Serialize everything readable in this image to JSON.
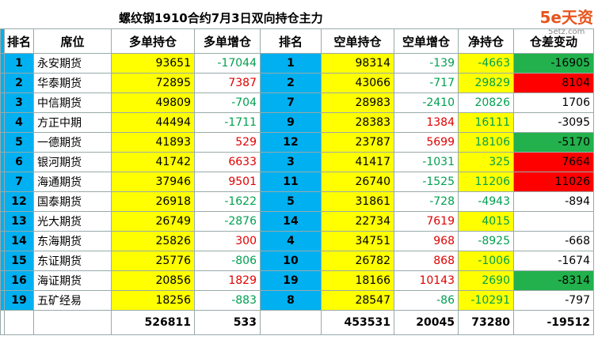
{
  "title": "螺纹钢1910合约7月3日双向持仓主力",
  "logo": {
    "brand": "5e天资",
    "site": "5etz.com"
  },
  "table": {
    "header": [
      "排名",
      "席位",
      "多单持仓",
      "多单增仓",
      "排名",
      "空单持仓",
      "空单增仓",
      "净持仓",
      "仓差变动"
    ],
    "rows": [
      [
        1,
        "永安期货",
        93651,
        -17044,
        1,
        98314,
        -139,
        -4663,
        -16905
      ],
      [
        2,
        "华泰期货",
        72895,
        7387,
        2,
        43066,
        -717,
        29829,
        8104
      ],
      [
        3,
        "中信期货",
        49809,
        -704,
        7,
        28983,
        -2410,
        20826,
        1706
      ],
      [
        4,
        "方正中期",
        44494,
        -1711,
        9,
        28383,
        1384,
        16111,
        -3095
      ],
      [
        5,
        "一德期货",
        41893,
        529,
        12,
        23787,
        5699,
        18106,
        -5170
      ],
      [
        6,
        "银河期货",
        41742,
        6633,
        3,
        41417,
        -1031,
        325,
        7664
      ],
      [
        7,
        "海通期货",
        37946,
        9501,
        11,
        26740,
        -1525,
        11206,
        11026
      ],
      [
        12,
        "国泰期货",
        26918,
        -1622,
        5,
        31861,
        -728,
        -4943,
        -894
      ],
      [
        13,
        "光大期货",
        26749,
        -2876,
        14,
        22734,
        7619,
        4015,
        null
      ],
      [
        14,
        "东海期货",
        25826,
        300,
        4,
        34751,
        968,
        -8925,
        -668
      ],
      [
        15,
        "东证期货",
        25776,
        -806,
        10,
        26782,
        868,
        -1006,
        -1674
      ],
      [
        16,
        "海证期货",
        20856,
        1829,
        19,
        18166,
        10143,
        2690,
        -8314
      ],
      [
        19,
        "五矿经易",
        18256,
        -883,
        8,
        28547,
        -86,
        -10291,
        -797
      ]
    ],
    "total": [
      null,
      null,
      526811,
      533,
      null,
      453531,
      20045,
      73280,
      -19512
    ],
    "change_highlight": [
      "#22b14c",
      "#ff0000",
      null,
      null,
      "#22b14c",
      "#ff0000",
      "#ff0000",
      null,
      null,
      null,
      null,
      "#22b14c",
      null
    ]
  }
}
